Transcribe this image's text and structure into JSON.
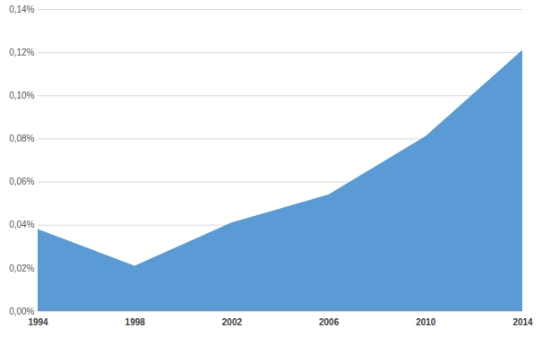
{
  "chart_data": {
    "type": "area",
    "x": [
      1994,
      1998,
      2002,
      2006,
      2010,
      2014
    ],
    "values": [
      0.038,
      0.021,
      0.041,
      0.054,
      0.081,
      0.121
    ],
    "color": "#5b9bd5",
    "xlim": [
      1994,
      2014
    ],
    "xticks": [
      1994,
      1998,
      2002,
      2006,
      2010,
      2014
    ],
    "ylim": [
      0,
      0.14
    ],
    "yticks": [
      {
        "value": 0,
        "label": "0,00%"
      },
      {
        "value": 0.02,
        "label": "0,02%"
      },
      {
        "value": 0.04,
        "label": "0,04%"
      },
      {
        "value": 0.06,
        "label": "0,06%"
      },
      {
        "value": 0.08,
        "label": "0,08%"
      },
      {
        "value": 0.1,
        "label": "0,10%"
      },
      {
        "value": 0.12,
        "label": "0,12%"
      },
      {
        "value": 0.14,
        "label": "0,14%"
      }
    ],
    "grid": true
  }
}
